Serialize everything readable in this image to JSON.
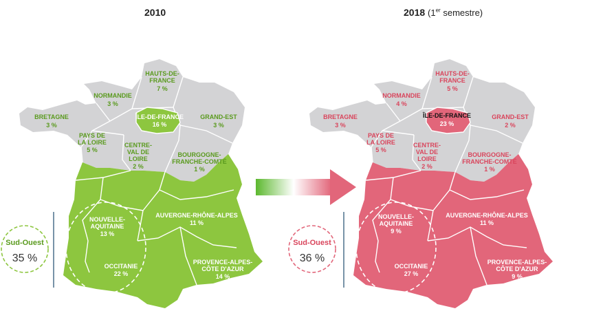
{
  "maps": [
    {
      "title": "2010",
      "title_suffix": "",
      "accent": "#8dc63f",
      "label_color": "#5a9a1e",
      "regions": {
        "hdf": {
          "name": "HAUTS-DE-FRANCE",
          "name1": "HAUTS-DE-",
          "name2": "FRANCE",
          "value": "7 %"
        },
        "normandie": {
          "name": "NORMANDIE",
          "value": "3 %"
        },
        "bretagne": {
          "name": "BRETAGNE",
          "value": "3 %"
        },
        "idf": {
          "name": "ÎLE-DE-FRANCE",
          "value": "16 %"
        },
        "grandest": {
          "name": "GRAND-EST",
          "value": "3 %"
        },
        "pdl": {
          "name": "PAYS DE LA LOIRE",
          "name1": "PAYS DE",
          "name2": "LA LOIRE",
          "value": "5 %"
        },
        "cvl": {
          "name": "CENTRE-VAL DE LOIRE",
          "name1": "CENTRE-",
          "name2": "VAL DE",
          "name3": "LOIRE",
          "value": "2 %"
        },
        "bfc": {
          "name": "BOURGOGNE-FRANCHE-COMTÉ",
          "name1": "BOURGOGNE-",
          "name2": "FRANCHE-COMTÉ",
          "value": "1 %"
        },
        "na": {
          "name": "NOUVELLE-AQUITAINE",
          "name1": "NOUVELLE-",
          "name2": "AQUITAINE",
          "value": "13 %"
        },
        "ara": {
          "name": "AUVERGNE-RHÔNE-ALPES",
          "value": "11 %"
        },
        "occ": {
          "name": "OCCITANIE",
          "value": "22 %"
        },
        "paca": {
          "name": "PROVENCE-ALPES-CÔTE D'AZUR",
          "name1": "PROVENCE-ALPES-",
          "name2": "CÔTE D'AZUR",
          "value": "14 %"
        }
      },
      "sud_ouest": {
        "name": "Sud-Ouest",
        "value": "35 %"
      }
    },
    {
      "title": "2018",
      "title_suffix": "(1er semestre)",
      "accent": "#e2667a",
      "label_color": "#d9455c",
      "regions": {
        "hdf": {
          "name": "HAUTS-DE-FRANCE",
          "name1": "HAUTS-DE-",
          "name2": "FRANCE",
          "value": "5 %"
        },
        "normandie": {
          "name": "NORMANDIE",
          "value": "4 %"
        },
        "bretagne": {
          "name": "BRETAGNE",
          "value": "3 %"
        },
        "idf": {
          "name": "ÎLE-DE-FRANCE",
          "value": "23 %"
        },
        "grandest": {
          "name": "GRAND-EST",
          "value": "2 %"
        },
        "pdl": {
          "name": "PAYS DE LA LOIRE",
          "name1": "PAYS DE",
          "name2": "LA LOIRE",
          "value": "5 %"
        },
        "cvl": {
          "name": "CENTRE-VAL DE LOIRE",
          "name1": "CENTRE-",
          "name2": "VAL DE",
          "name3": "LOIRE",
          "value": "2 %"
        },
        "bfc": {
          "name": "BOURGOGNE-FRANCHE-COMTÉ",
          "name1": "BOURGOGNE-",
          "name2": "FRANCHE-COMTÉ",
          "value": "1 %"
        },
        "na": {
          "name": "NOUVELLE-AQUITAINE",
          "name1": "NOUVELLE-",
          "name2": "AQUITAINE",
          "value": "9 %"
        },
        "ara": {
          "name": "AUVERGNE-RHÔNE-ALPES",
          "value": "11 %"
        },
        "occ": {
          "name": "OCCITANIE",
          "value": "27 %"
        },
        "paca": {
          "name": "PROVENCE-ALPES-CÔTE D'AZUR",
          "name1": "PROVENCE-ALPES-",
          "name2": "CÔTE D'AZUR",
          "value": "9 %"
        }
      },
      "sud_ouest": {
        "name": "Sud-Ouest",
        "value": "36 %"
      }
    }
  ],
  "colors": {
    "land_grey": "#d3d3d5",
    "border": "#ffffff",
    "arrow_from": "#5cb82e",
    "arrow_to": "#e2667a",
    "bracket": "#4a6f8a",
    "idf_label_2018": "#111111"
  }
}
